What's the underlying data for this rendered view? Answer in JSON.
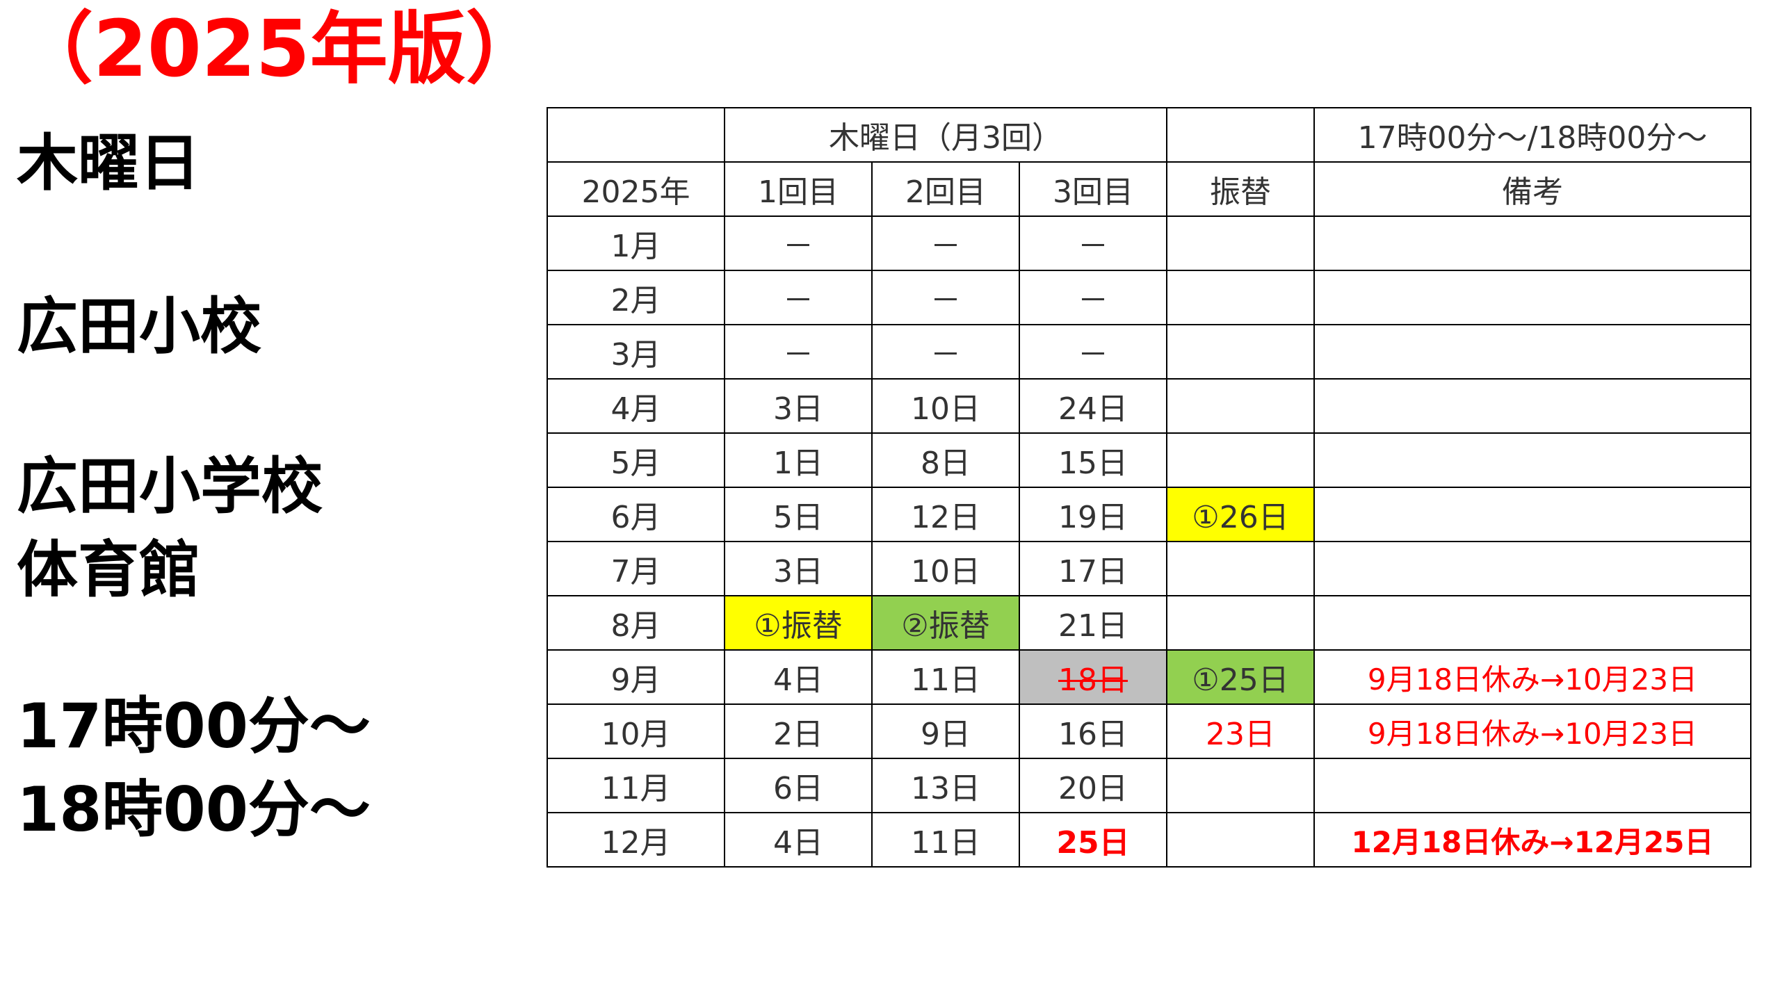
{
  "title": "（2025年版）",
  "sidebar": {
    "day": "木曜日",
    "school": "広田小校",
    "venue_line1": "広田小学校",
    "venue_line2": "体育館",
    "time_line1": "17時00分～",
    "time_line2": "18時00分～"
  },
  "table": {
    "header_top": {
      "group": "木曜日（月3回）",
      "time": "17時00分～/18時00分～"
    },
    "header": {
      "year": "2025年",
      "r1": "1回目",
      "r2": "2回目",
      "r3": "3回目",
      "swap": "振替",
      "note": "備考"
    },
    "rows": [
      {
        "month": "1月",
        "r1": "－",
        "r2": "－",
        "r3": "－",
        "swap": "",
        "note": ""
      },
      {
        "month": "2月",
        "r1": "－",
        "r2": "－",
        "r3": "－",
        "swap": "",
        "note": ""
      },
      {
        "month": "3月",
        "r1": "－",
        "r2": "－",
        "r3": "－",
        "swap": "",
        "note": ""
      },
      {
        "month": "4月",
        "r1": "3日",
        "r2": "10日",
        "r3": "24日",
        "swap": "",
        "note": ""
      },
      {
        "month": "5月",
        "r1": "1日",
        "r2": "8日",
        "r3": "15日",
        "swap": "",
        "note": ""
      },
      {
        "month": "6月",
        "r1": "5日",
        "r2": "12日",
        "r3": "19日",
        "swap": "①26日",
        "note": ""
      },
      {
        "month": "7月",
        "r1": "3日",
        "r2": "10日",
        "r3": "17日",
        "swap": "",
        "note": ""
      },
      {
        "month": "8月",
        "r1": "①振替",
        "r2": "②振替",
        "r3": "21日",
        "swap": "",
        "note": ""
      },
      {
        "month": "9月",
        "r1": "4日",
        "r2": "11日",
        "r3": "18日",
        "swap": "①25日",
        "note": "9月18日休み→10月23日"
      },
      {
        "month": "10月",
        "r1": "2日",
        "r2": "9日",
        "r3": "16日",
        "swap": "23日",
        "note": "9月18日休み→10月23日"
      },
      {
        "month": "11月",
        "r1": "6日",
        "r2": "13日",
        "r3": "20日",
        "swap": "",
        "note": ""
      },
      {
        "month": "12月",
        "r1": "4日",
        "r2": "11日",
        "r3": "25日",
        "swap": "",
        "note": "12月18日休み→12月25日"
      }
    ]
  },
  "colors": {
    "yellow_highlight": "#ffff00",
    "green_highlight": "#92d050",
    "gray_cancelled": "#bfbfbf",
    "red_text": "#ff0000"
  }
}
